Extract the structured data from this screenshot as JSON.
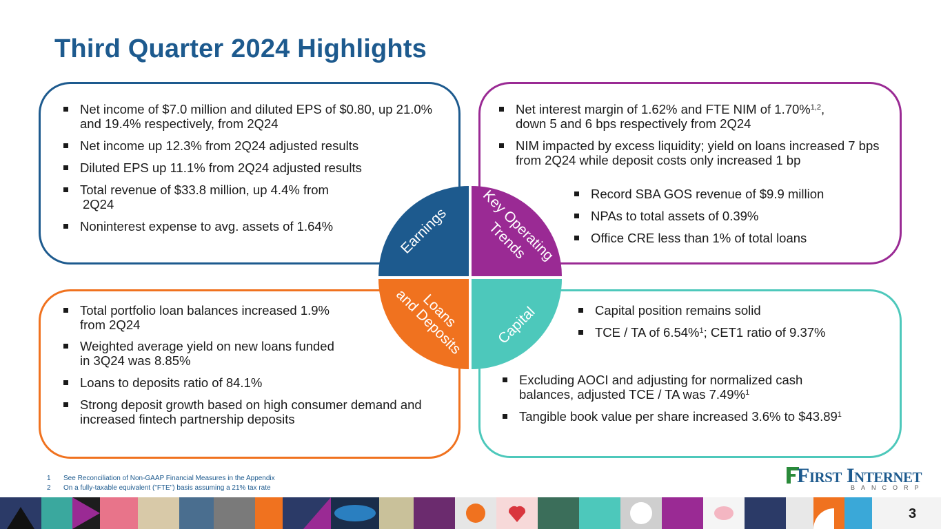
{
  "page": {
    "title": "Third Quarter 2024 Highlights",
    "page_number": "3"
  },
  "earnings": {
    "b1": "Net income of $7.0 million and diluted EPS of $0.80, up 21.0% and 19.4% respectively, from 2Q24",
    "b2": "Net income up 12.3% from 2Q24 adjusted results",
    "b3": "Diluted EPS up 11.1% from 2Q24 adjusted results",
    "b4_line1": "Total revenue of $33.8 million, up 4.4% from",
    "b4_line2": "2Q24",
    "b5": "Noninterest expense to avg. assets of 1.64%"
  },
  "key_trends": {
    "b1_text": "Net interest margin of 1.62% and FTE NIM of 1.70%",
    "b1_sup": "1,2",
    "b1_tail": ",",
    "b1_line2": "down 5 and 6 bps respectively from 2Q24",
    "b2": "NIM impacted by excess liquidity; yield on loans increased 7 bps from 2Q24 while deposit costs only increased 1 bp",
    "b3": "Record SBA GOS revenue of $9.9 million",
    "b4": "NPAs to total assets of 0.39%",
    "b5": "Office CRE less than 1% of total loans"
  },
  "loans": {
    "b1_line1": "Total portfolio loan balances increased 1.9%",
    "b1_line2": "from 2Q24",
    "b2_line1": "Weighted average yield on new loans funded",
    "b2_line2": "in 3Q24 was 8.85%",
    "b3": "Loans to deposits ratio of 84.1%",
    "b4": "Strong deposit growth based on high consumer demand and increased fintech partnership deposits"
  },
  "capital": {
    "b1": "Capital position remains solid",
    "b2_text": "TCE / TA of 6.54%",
    "b2_sup": "1",
    "b2_tail": "; CET1 ratio of 9.37%",
    "b3_line1": "Excluding AOCI and adjusting for normalized cash",
    "b3_text": "balances, adjusted TCE / TA was 7.49%",
    "b3_sup": "1",
    "b4_text": "Tangible book value per share increased 3.6% to $43.89",
    "b4_sup": "1"
  },
  "wheel": {
    "earnings": "Earnings",
    "key_line1": "Key Operating",
    "key_line2": "Trends",
    "loans_line1": "Loans",
    "loans_line2": "and Deposits",
    "capital": "Capital"
  },
  "footnotes": [
    {
      "num": "1",
      "text": "See Reconciliation of Non-GAAP Financial Measures in the Appendix"
    },
    {
      "num": "2",
      "text": "On a fully-taxable equivalent (\"FTE\") basis assuming a 21% tax rate"
    }
  ],
  "logo": {
    "name": "First Internet",
    "sub": "BANCORP"
  },
  "colors": {
    "earnings": "#1d5a8e",
    "key_trends": "#9a2a94",
    "loans": "#f0721f",
    "capital": "#4dc8bb"
  }
}
